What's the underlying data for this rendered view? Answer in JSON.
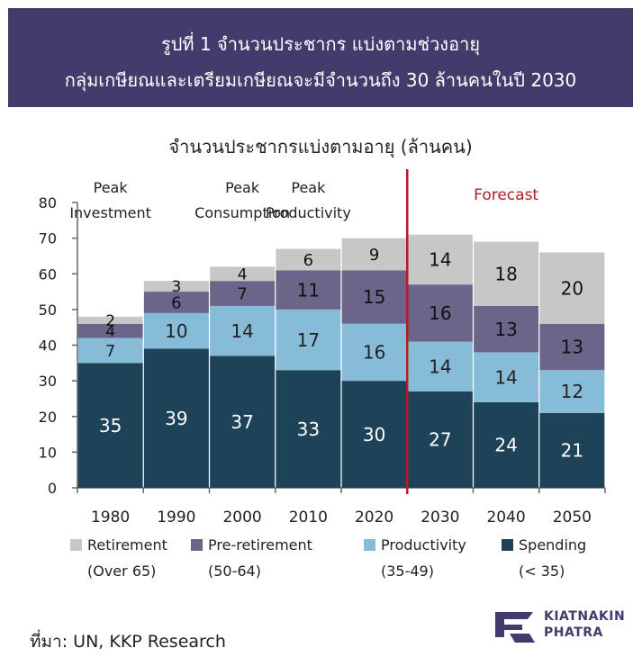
{
  "header": {
    "line1": "รูปที่ 1  จำนวนประชากร แบ่งตามช่วงอายุ",
    "line2": "กลุ่มเกษียณและเตรียมเกษียณจะมีจำนวนถึง 30 ล้านคนในปี 2030",
    "background_color": "#433b6c"
  },
  "source": "ที่มา: UN, KKP Research",
  "logo": {
    "line1": "KIATNAKIN",
    "line2": "PHATRA"
  },
  "chart_data": {
    "type": "bar",
    "stacked": true,
    "title": "จำนวนประชากรแบ่งตามอายุ (ล้านคน)",
    "categories": [
      "1980",
      "1990",
      "2000",
      "2010",
      "2020",
      "2030",
      "2040",
      "2050"
    ],
    "ylim": [
      0,
      80
    ],
    "yticks": [
      0,
      10,
      20,
      30,
      40,
      50,
      60,
      70,
      80
    ],
    "grid": false,
    "series": [
      {
        "name": "Spending",
        "range": "(< 35)",
        "color": "#1e4257",
        "label_color": "#ffffff",
        "values": [
          35,
          39,
          37,
          33,
          30,
          27,
          24,
          21
        ]
      },
      {
        "name": "Productivity",
        "range": "(35-49)",
        "color": "#87bcd9",
        "label_color": "#222222",
        "values": [
          7,
          10,
          14,
          17,
          16,
          14,
          14,
          12
        ]
      },
      {
        "name": "Pre-retirement",
        "range": "(50-64)",
        "color": "#6a6589",
        "label_color": "#111111",
        "values": [
          4,
          6,
          7,
          11,
          15,
          16,
          13,
          13
        ]
      },
      {
        "name": "Retirement",
        "range": "(Over 65)",
        "color": "#c7c7c7",
        "label_color": "#111111",
        "values": [
          2,
          3,
          4,
          6,
          9,
          14,
          18,
          20
        ]
      }
    ],
    "legend_order": [
      "Retirement",
      "Pre-retirement",
      "Productivity",
      "Spending"
    ],
    "annotations": [
      {
        "category": "1980",
        "lines": [
          "Peak",
          "Investment"
        ]
      },
      {
        "category": "2000",
        "lines": [
          "Peak",
          "Consumption"
        ]
      },
      {
        "category": "2010",
        "lines": [
          "Peak",
          "Productivity"
        ]
      }
    ],
    "forecast": {
      "label": "Forecast",
      "after_category": "2020",
      "color": "#b01e23"
    }
  }
}
